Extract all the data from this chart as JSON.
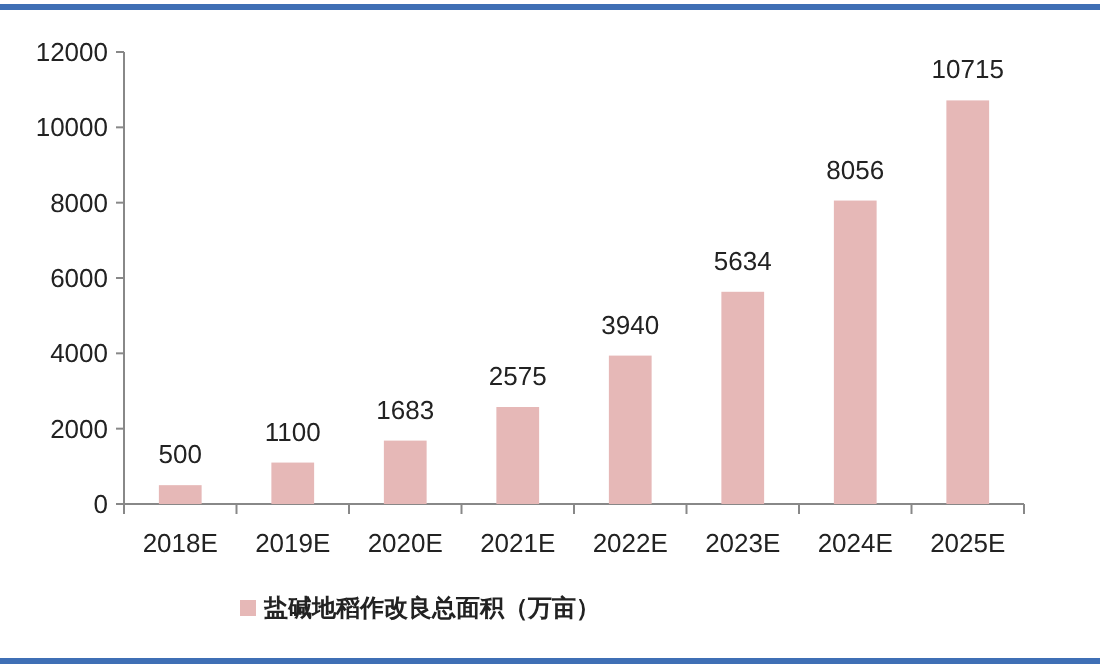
{
  "chart_data": {
    "type": "bar",
    "categories": [
      "2018E",
      "2019E",
      "2020E",
      "2021E",
      "2022E",
      "2023E",
      "2024E",
      "2025E"
    ],
    "series": [
      {
        "name": "盐碱地稻作改良总面积（万亩）",
        "color": "#e6b8b7",
        "values": [
          500,
          1100,
          1683,
          2575,
          3940,
          5634,
          8056,
          10715
        ]
      }
    ],
    "ylim": [
      0,
      12000
    ],
    "yticks": [
      0,
      2000,
      4000,
      6000,
      8000,
      10000,
      12000
    ],
    "data_labels": true,
    "grid": false,
    "legend": "bottom"
  }
}
